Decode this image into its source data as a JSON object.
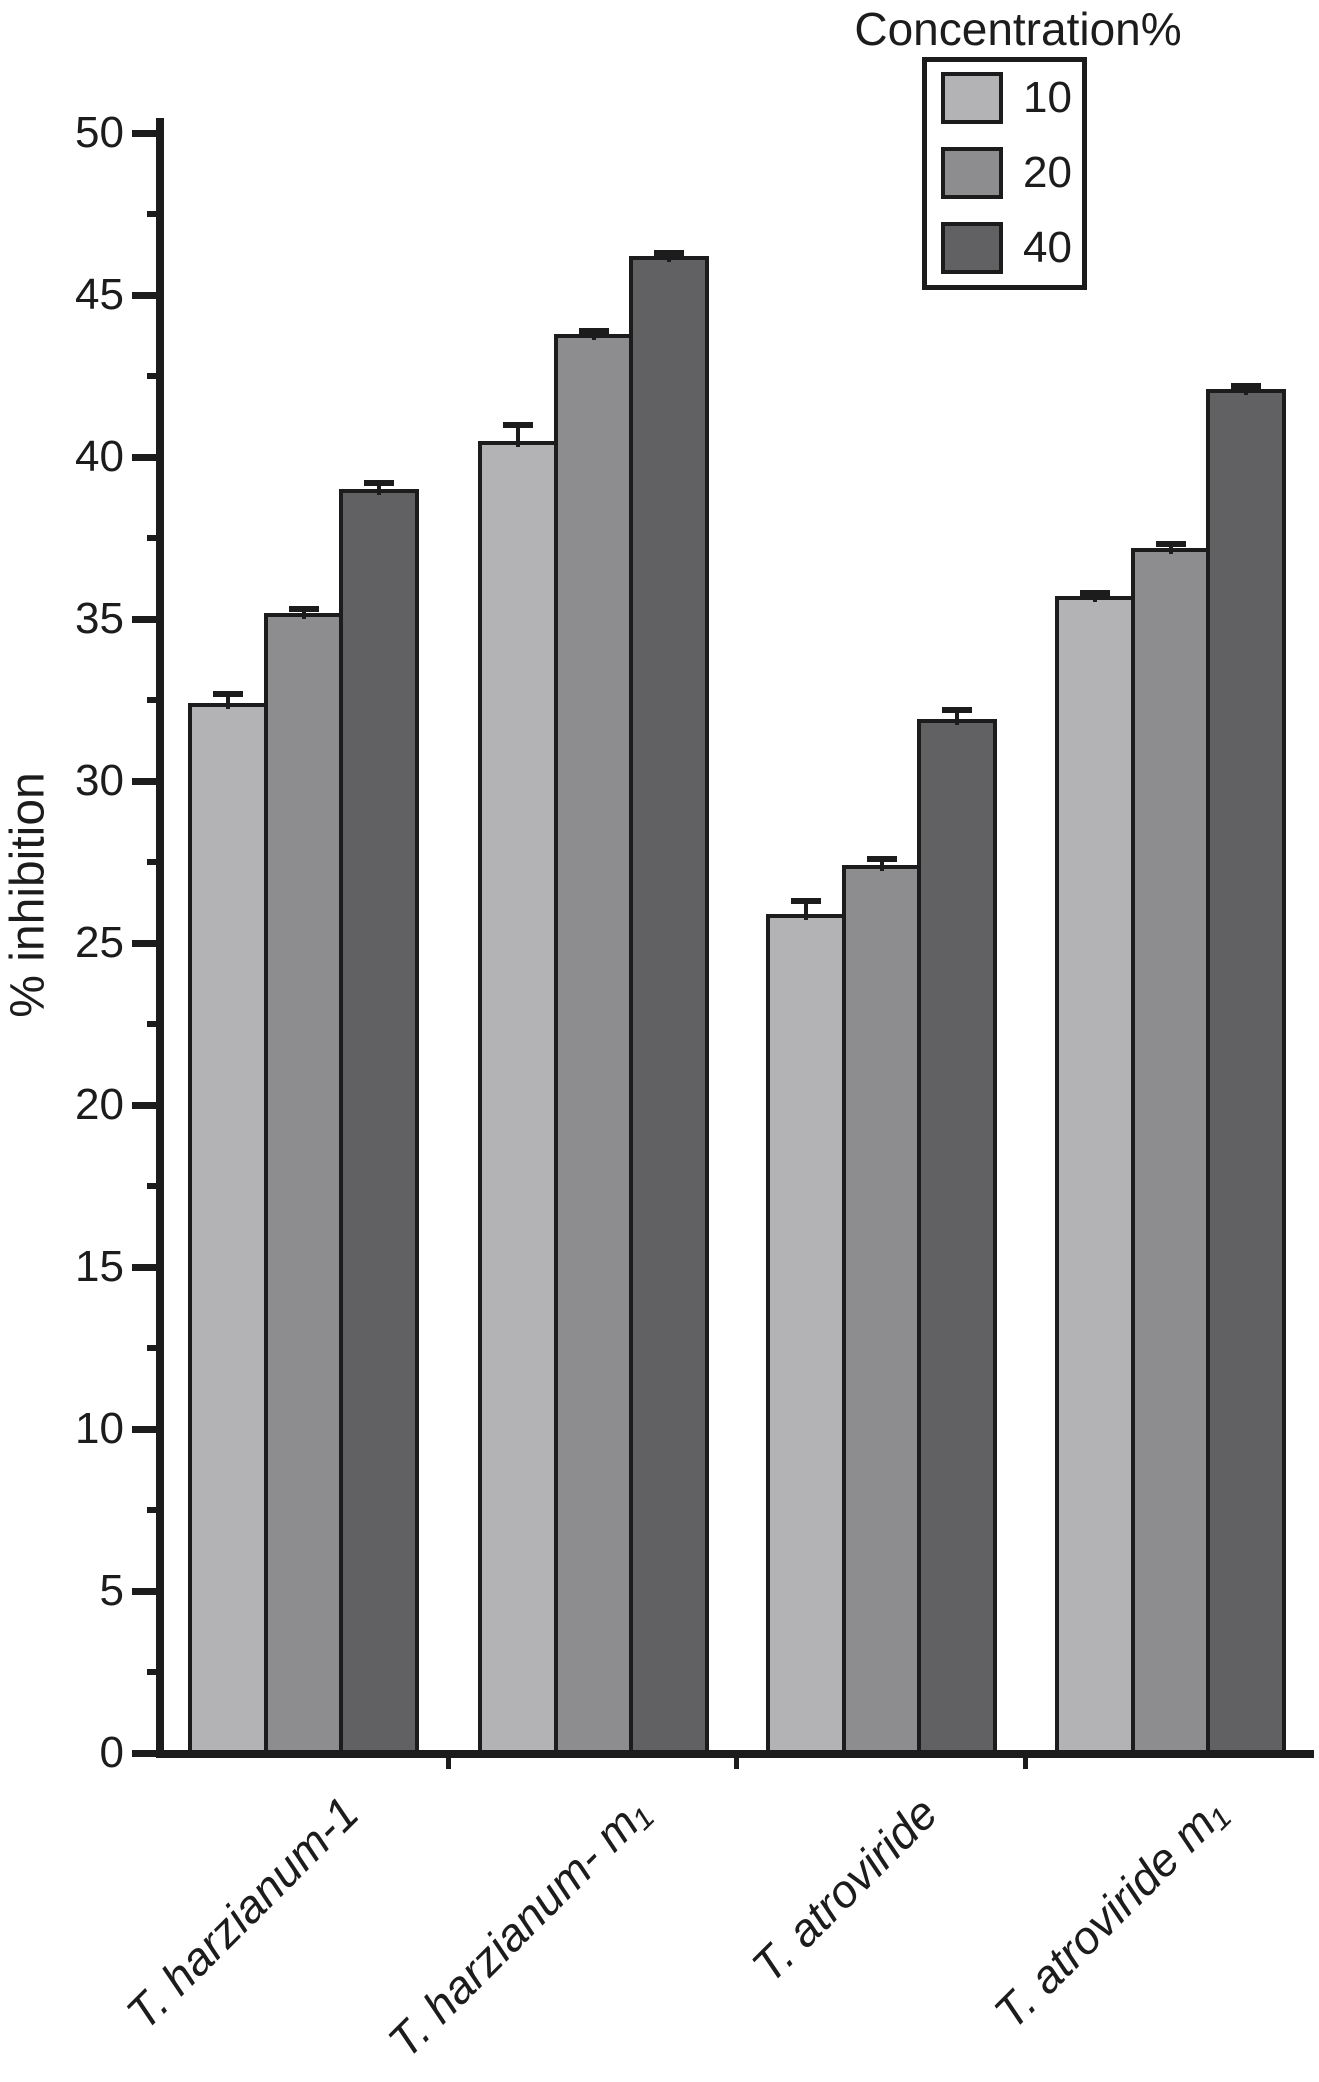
{
  "chart_data": {
    "type": "bar",
    "title": "",
    "xlabel": "",
    "ylabel": "% inhibition",
    "ylim": [
      0,
      50
    ],
    "yticks": [
      0,
      5,
      10,
      15,
      20,
      25,
      30,
      35,
      40,
      45,
      50
    ],
    "yticks_minor": [
      2.5,
      7.5,
      12.5,
      17.5,
      22.5,
      27.5,
      32.5,
      37.5,
      42.5,
      47.5
    ],
    "grid": false,
    "categories": [
      "T. harzianum-1",
      "T. harzianum- m₁",
      "T. atroviride",
      "T. atroviride m₁"
    ],
    "series": [
      {
        "name": "10",
        "color": "#b3b3b5",
        "values": [
          32.4,
          40.5,
          25.9,
          35.7
        ],
        "errors": [
          0.3,
          0.5,
          0.4,
          0.1
        ]
      },
      {
        "name": "20",
        "color": "#8d8d8f",
        "values": [
          35.2,
          43.8,
          27.4,
          37.2
        ],
        "errors": [
          0.1,
          0.1,
          0.2,
          0.1
        ]
      },
      {
        "name": "40",
        "color": "#616163",
        "values": [
          39.0,
          46.2,
          31.9,
          42.1
        ],
        "errors": [
          0.2,
          0.1,
          0.3,
          0.1
        ]
      }
    ],
    "legend": {
      "title": "Concentration%",
      "position": "top-right"
    },
    "error_bars": "upper caps shown",
    "bar_outline_color": "#1c1c1c"
  }
}
